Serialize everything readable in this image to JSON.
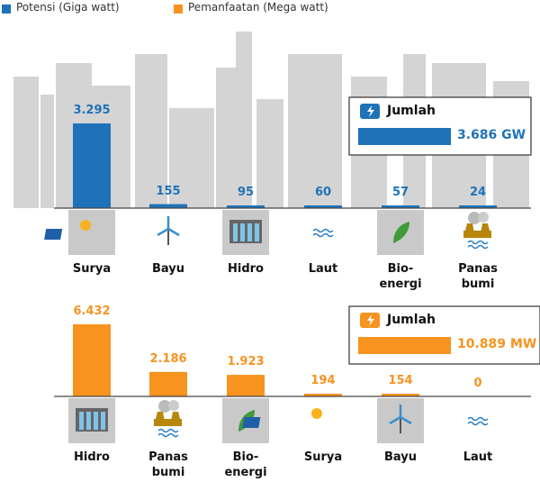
{
  "chart_data": [
    {
      "type": "bar",
      "categories": [
        "Surya",
        "Bayu",
        "Hidro",
        "Laut",
        "Bio-\nenergi",
        "Panas\nbumi"
      ],
      "series": [
        {
          "name": "Potensi (Giga watt)",
          "color": "#1f72b8",
          "values": [
            3295,
            155,
            95,
            60,
            57,
            24
          ],
          "value_labels": [
            "3.295",
            "155",
            "95",
            "60",
            "57",
            "24"
          ]
        }
      ],
      "total": {
        "label": "Jumlah",
        "value": 3686,
        "value_label": "3.686 GW"
      }
    },
    {
      "type": "bar",
      "categories": [
        "Hidro",
        "Panas\nbumi",
        "Bio-\nenergi",
        "Surya",
        "Bayu",
        "Laut"
      ],
      "series": [
        {
          "name": "Pemanfaatan (Mega watt)",
          "color": "#f7931e",
          "values": [
            6432,
            2186,
            1923,
            194,
            154,
            0
          ],
          "value_labels": [
            "6.432",
            "2.186",
            "1.923",
            "194",
            "154",
            "0"
          ]
        }
      ],
      "total": {
        "label": "Jumlah",
        "value": 10889,
        "value_label": "10.889 MW"
      }
    }
  ]
}
